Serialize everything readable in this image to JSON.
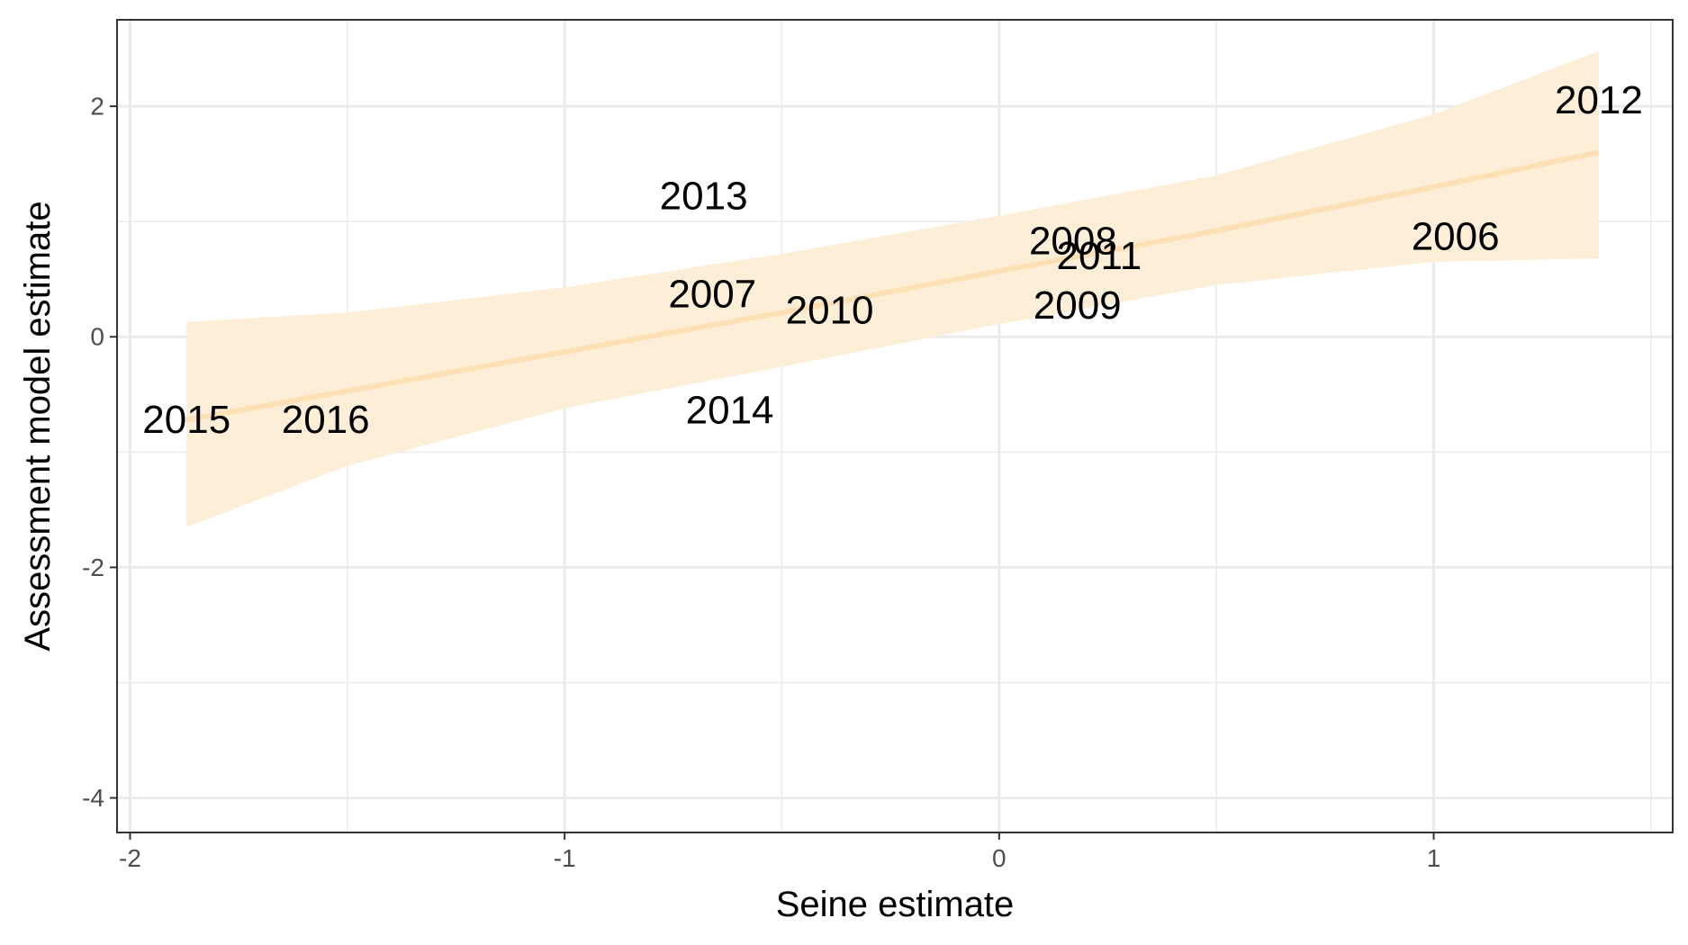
{
  "chart_data": {
    "type": "scatter",
    "xlabel": "Seine estimate",
    "ylabel": "Assessment model estimate",
    "xlim": [
      -2.03,
      1.55
    ],
    "ylim": [
      -4.3,
      2.75
    ],
    "x_ticks": [
      -2,
      -1,
      0,
      1
    ],
    "x_tick_labels": [
      "-2",
      "-1",
      "0",
      "1"
    ],
    "y_ticks": [
      -4,
      -2,
      0,
      2
    ],
    "y_tick_labels": [
      "-4",
      "-2",
      "0",
      "2"
    ],
    "x_minor_grid": [
      -1.5,
      -0.5,
      0.5,
      1.5
    ],
    "y_minor_grid": [
      -3,
      -1,
      1
    ],
    "grid": true,
    "points": [
      {
        "label": "2015",
        "x": -1.87,
        "y": -0.72
      },
      {
        "label": "2016",
        "x": -1.55,
        "y": -0.72
      },
      {
        "label": "2014",
        "x": -0.62,
        "y": -0.64
      },
      {
        "label": "2013",
        "x": -0.68,
        "y": 1.22
      },
      {
        "label": "2007",
        "x": -0.66,
        "y": 0.37
      },
      {
        "label": "2010",
        "x": -0.39,
        "y": 0.23
      },
      {
        "label": "2008",
        "x": 0.17,
        "y": 0.83
      },
      {
        "label": "2011",
        "x": 0.23,
        "y": 0.7
      },
      {
        "label": "2009",
        "x": 0.18,
        "y": 0.27
      },
      {
        "label": "2006",
        "x": 1.05,
        "y": 0.87
      },
      {
        "label": "2012",
        "x": 1.38,
        "y": 2.05
      }
    ],
    "fit": {
      "x": [
        -1.87,
        -1.5,
        -1.0,
        -0.5,
        0.0,
        0.5,
        1.0,
        1.38
      ],
      "y": [
        -0.72,
        -0.47,
        -0.13,
        0.21,
        0.57,
        0.92,
        1.3,
        1.6
      ],
      "upper": [
        0.13,
        0.21,
        0.43,
        0.72,
        1.05,
        1.4,
        1.93,
        2.48
      ],
      "lower": [
        -1.65,
        -1.12,
        -0.62,
        -0.26,
        0.11,
        0.45,
        0.65,
        0.68
      ]
    },
    "colors": {
      "ribbon": "#fdefd7",
      "fit_line": "#fde0b5",
      "grid": "#ebebeb",
      "panel_border": "#333333",
      "tick": "#333333"
    }
  }
}
